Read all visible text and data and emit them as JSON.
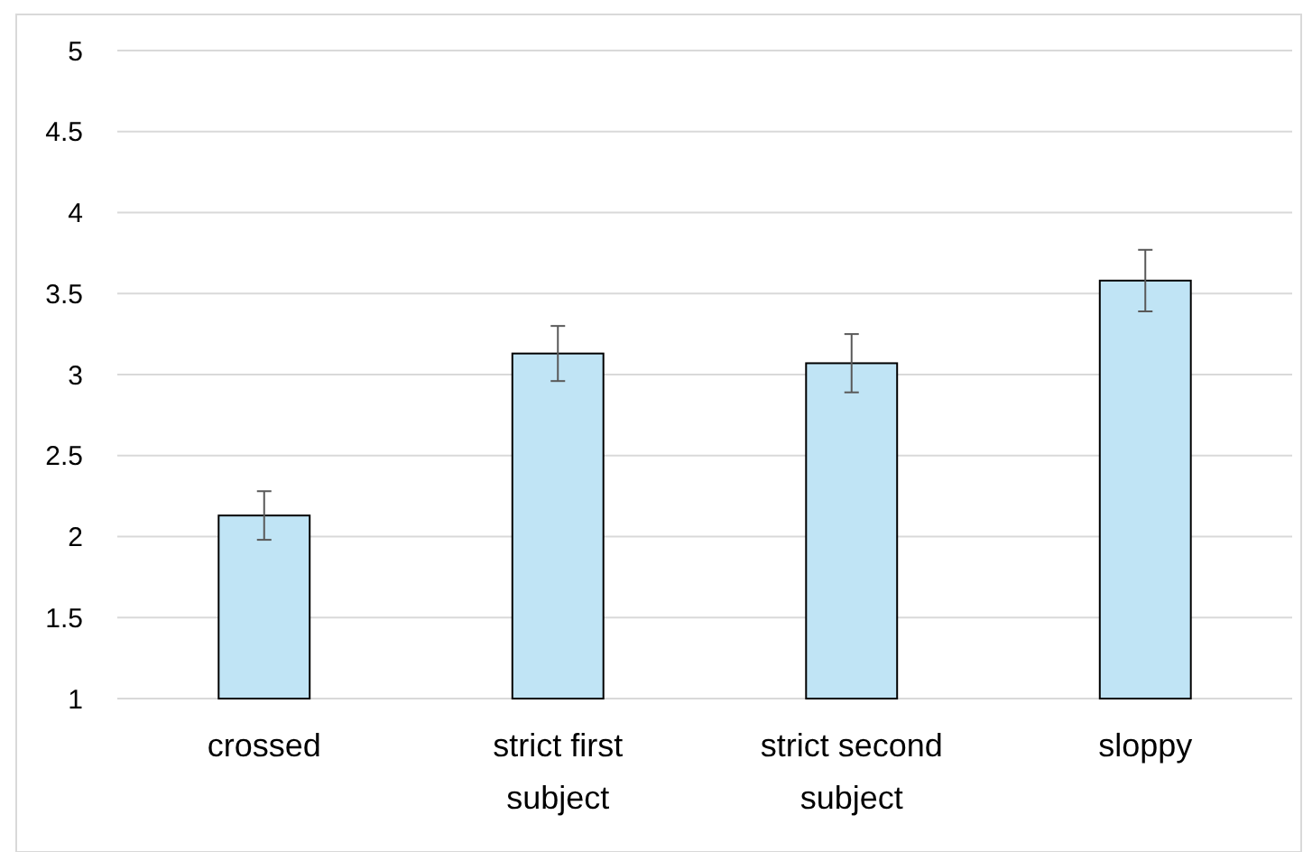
{
  "chart_data": {
    "type": "bar",
    "categories": [
      "crossed",
      "strict first subject",
      "strict second subject",
      "sloppy"
    ],
    "values": [
      2.13,
      3.13,
      3.07,
      3.58
    ],
    "errors": [
      0.15,
      0.17,
      0.18,
      0.19
    ],
    "color": "#c0e4f5",
    "ylim": [
      1,
      5
    ],
    "yticks": [
      1,
      1.5,
      2,
      2.5,
      3,
      3.5,
      4,
      4.5,
      5
    ],
    "grid": "y"
  }
}
